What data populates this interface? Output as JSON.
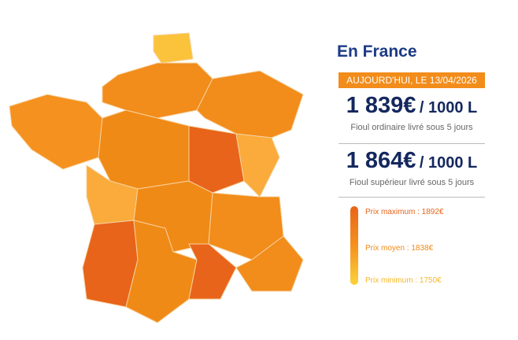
{
  "panel": {
    "title": "En France",
    "date_banner": "AUJOURD'HUI, LE 13/04/2026",
    "prices": [
      {
        "amount": "1 839€",
        "unit": "/ 1000 L",
        "description": "Fioul ordinaire livré sous 5 jours"
      },
      {
        "amount": "1 864€",
        "unit": "/ 1000 L",
        "description": "Fioul supérieur livré sous 5 jours"
      }
    ],
    "legend": [
      "Prix maximum : 1892€",
      "Prix moyen : 1838€",
      "Prix minimum : 1750€"
    ]
  }
}
